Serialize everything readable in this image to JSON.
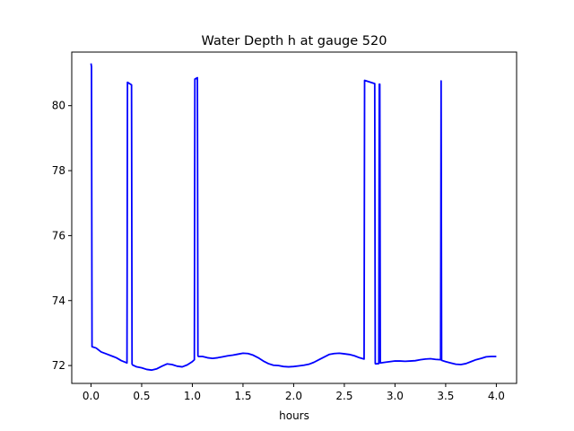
{
  "chart_data": {
    "type": "line",
    "title": "Water Depth h at gauge 520",
    "xlabel": "hours",
    "ylabel": "",
    "xlim": [
      -0.19,
      4.2
    ],
    "ylim": [
      71.45,
      81.65
    ],
    "xticks": [
      0.0,
      0.5,
      1.0,
      1.5,
      2.0,
      2.5,
      3.0,
      3.5,
      4.0
    ],
    "xtick_labels": [
      "0.0",
      "0.5",
      "1.0",
      "1.5",
      "2.0",
      "2.5",
      "3.0",
      "3.5",
      "4.0"
    ],
    "yticks": [
      72,
      74,
      76,
      78,
      80
    ],
    "ytick_labels": [
      "72",
      "74",
      "76",
      "78",
      "80"
    ],
    "grid": false,
    "series": [
      {
        "color": "#0000ff",
        "x": [
          0.0,
          0.005,
          0.01,
          0.05,
          0.1,
          0.15,
          0.2,
          0.25,
          0.3,
          0.355,
          0.36,
          0.4,
          0.405,
          0.41,
          0.45,
          0.5,
          0.55,
          0.6,
          0.65,
          0.7,
          0.75,
          0.8,
          0.85,
          0.9,
          0.95,
          1.0,
          1.02,
          1.025,
          1.05,
          1.055,
          1.06,
          1.1,
          1.15,
          1.2,
          1.25,
          1.3,
          1.35,
          1.4,
          1.45,
          1.5,
          1.55,
          1.6,
          1.65,
          1.7,
          1.75,
          1.8,
          1.85,
          1.9,
          1.95,
          2.0,
          2.05,
          2.1,
          2.15,
          2.2,
          2.25,
          2.3,
          2.35,
          2.4,
          2.45,
          2.5,
          2.55,
          2.6,
          2.65,
          2.695,
          2.7,
          2.8,
          2.805,
          2.81,
          2.84,
          2.845,
          2.85,
          2.855,
          2.9,
          2.95,
          3.0,
          3.05,
          3.1,
          3.15,
          3.2,
          3.25,
          3.3,
          3.35,
          3.4,
          3.45,
          3.455,
          3.46,
          3.5,
          3.55,
          3.6,
          3.65,
          3.7,
          3.75,
          3.8,
          3.85,
          3.9,
          3.95,
          4.0
        ],
        "y": [
          81.3,
          81.2,
          72.58,
          72.54,
          72.42,
          72.36,
          72.3,
          72.24,
          72.15,
          72.08,
          80.72,
          80.64,
          72.05,
          72.02,
          71.96,
          71.93,
          71.88,
          71.86,
          71.9,
          71.98,
          72.05,
          72.03,
          71.98,
          71.96,
          72.02,
          72.12,
          72.18,
          80.82,
          80.86,
          72.3,
          72.28,
          72.28,
          72.24,
          72.22,
          72.24,
          72.27,
          72.3,
          72.32,
          72.35,
          72.38,
          72.37,
          72.32,
          72.24,
          72.14,
          72.06,
          72.01,
          72.0,
          71.97,
          71.96,
          71.97,
          71.99,
          72.01,
          72.04,
          72.1,
          72.18,
          72.26,
          72.34,
          72.37,
          72.38,
          72.36,
          72.34,
          72.3,
          72.24,
          72.2,
          80.78,
          80.68,
          72.06,
          72.05,
          72.06,
          80.66,
          80.66,
          72.08,
          72.1,
          72.12,
          72.14,
          72.14,
          72.13,
          72.14,
          72.15,
          72.18,
          72.2,
          72.21,
          72.19,
          72.18,
          80.76,
          72.16,
          72.12,
          72.08,
          72.04,
          72.03,
          72.06,
          72.12,
          72.18,
          72.22,
          72.27,
          72.28,
          72.28
        ]
      }
    ]
  }
}
